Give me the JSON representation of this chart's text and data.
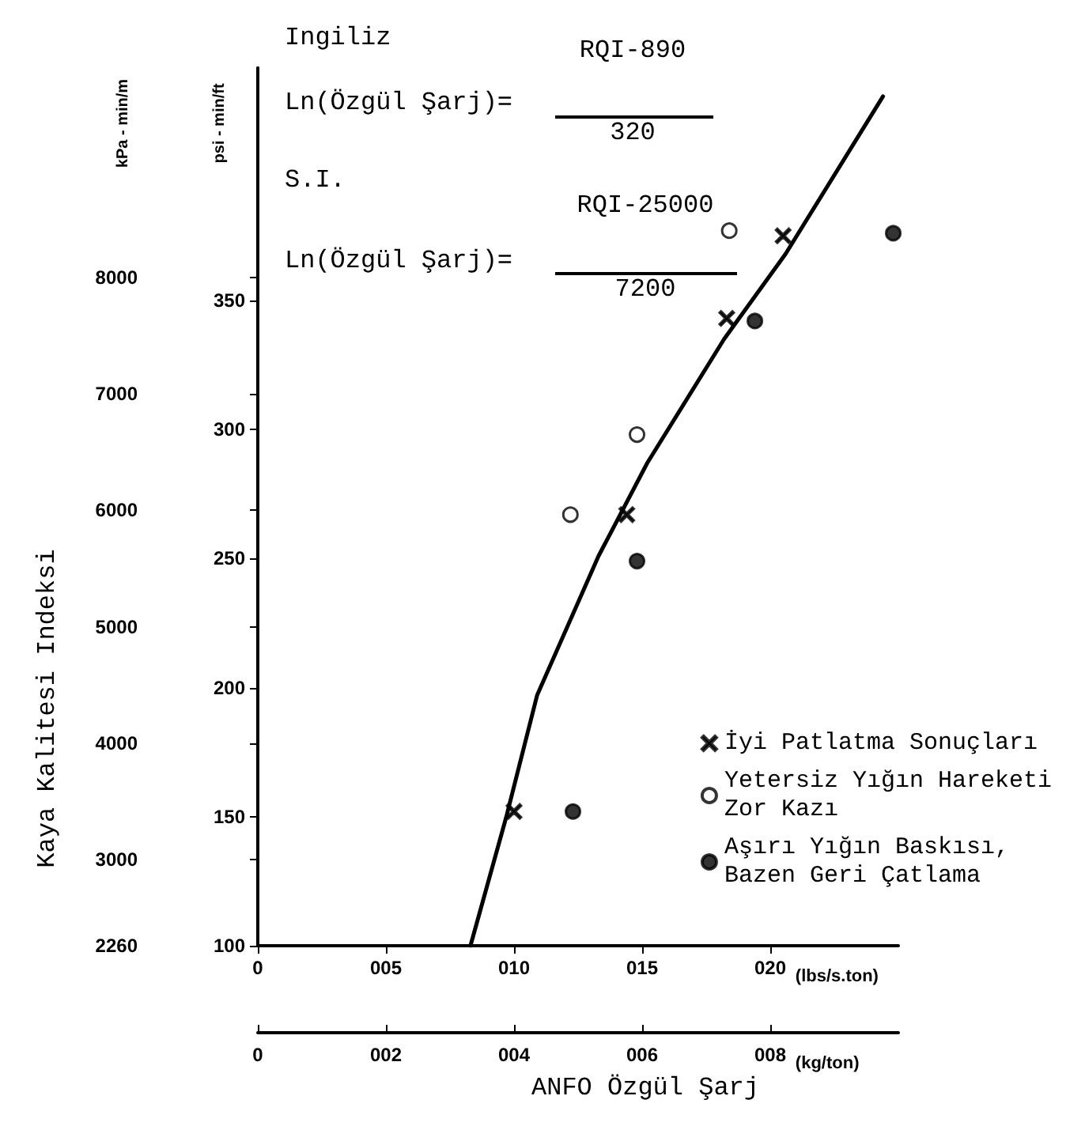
{
  "chart_data": {
    "type": "scatter",
    "xlabel": "(lbs/s.ton)",
    "x2label": "(kg/ton)",
    "ylabel": "psi - min/ft",
    "y2label": "kPa - min/m",
    "annotations": [
      "Ingiliz",
      "Ln(Özgül Şarj)=",
      "RQI-890",
      "320",
      "S.I.",
      "Ln(Özgül Şarj)=",
      "RQI-25000",
      "7200",
      "Kaya Kalitesi Indeksi",
      "ANFO Özgül Şarj"
    ],
    "xlim": [
      0,
      25
    ],
    "xticks": [
      {
        "value": 0,
        "label": "0"
      },
      {
        "value": 5,
        "label": "005"
      },
      {
        "value": 10,
        "label": "010"
      },
      {
        "value": 15,
        "label": "015"
      },
      {
        "value": 20,
        "label": "020"
      }
    ],
    "x2lim": [
      0,
      10
    ],
    "x2ticks": [
      {
        "value": 0,
        "label": "0"
      },
      {
        "value": 2,
        "label": "002"
      },
      {
        "value": 4,
        "label": "004"
      },
      {
        "value": 6,
        "label": "006"
      },
      {
        "value": 8,
        "label": "008"
      }
    ],
    "ylim": [
      100,
      440
    ],
    "yticks": [
      100,
      150,
      200,
      250,
      300,
      350
    ],
    "y2lim": [
      2260,
      9800
    ],
    "y2ticks": [
      2260,
      3000,
      4000,
      5000,
      6000,
      7000,
      8000
    ],
    "grid": false,
    "legend": "bottom right",
    "series": [
      {
        "name": "İyi Patlatma Sonuçları",
        "color": "#000000",
        "marker": "cross",
        "x": [
          10,
          14.4,
          18.3,
          20.5
        ],
        "values": [
          152,
          267,
          343,
          375
        ]
      },
      {
        "name": "Yetersiz Yığın Hareketi\nZor Kazı",
        "color": "#ffffff",
        "marker": "circle",
        "x": [
          12.2,
          14.8,
          18.4
        ],
        "values": [
          267,
          298,
          377
        ]
      },
      {
        "name": "Aşırı Yığın Baskısı,\nBazen Geri Çatlama",
        "color": "#000000",
        "marker": "circle",
        "x": [
          12.3,
          14.8,
          19.4,
          24.8
        ],
        "values": [
          152,
          249,
          342,
          376
        ]
      },
      {
        "type": "line",
        "color": "#000000",
        "marker": "none",
        "line_style": "solid",
        "x": [
          8.3,
          9.7,
          10.9,
          13.3,
          15.2,
          18.2,
          20.6,
          24.4
        ],
        "values": [
          100,
          150,
          197,
          251,
          287,
          335,
          368,
          429
        ]
      }
    ]
  }
}
